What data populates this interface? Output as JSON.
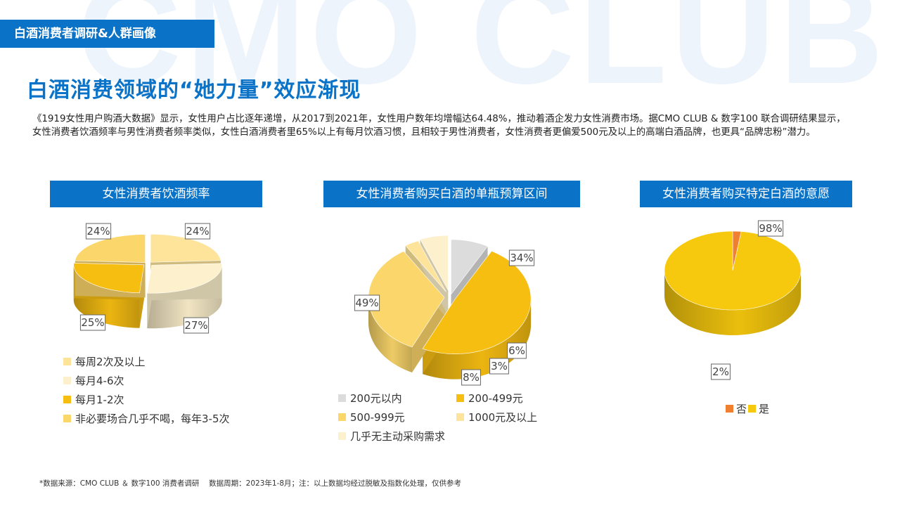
{
  "watermark": "CMO CLUB",
  "section_tag": "白酒消费者调研&人群画像",
  "title": "白酒消费领域的“她力量”效应渐现",
  "intro": "《1919女性用户购酒大数据》显示，女性用户占比逐年递增，从2017到2021年，女性用户数年均增幅达64.48%，推动着酒企发力女性消费市场。据CMO CLUB & 数字100 联合调研结果显示，女性消费者饮酒频率与男性消费者频率类似，女性白酒消费者里65%以上有每月饮酒习惯，且相较于男性消费者，女性消费者更偏爱500元及以上的高端白酒品牌，也更具“品牌忠粉”潜力。",
  "footnote": "*数据来源：CMO CLUB ＆ 数字100 消费者调研　 数据周期：2023年1-8月；注：以上数据均经过脱敏及指数化处理，仅供参考",
  "chart_data": [
    {
      "type": "pie",
      "title": "女性消费者饮酒频率",
      "categories": [
        "每周2次及以上",
        "每月4-6次",
        "每月1-2次",
        "非必要场合几乎不喝，每年3-5次"
      ],
      "values": [
        24,
        27,
        25,
        24
      ],
      "labels": [
        "24%",
        "27%",
        "25%",
        "24%"
      ],
      "colors": [
        "#fde49a",
        "#fdf0cc",
        "#f7be12",
        "#fbd66a"
      ],
      "legend_position": "bottom"
    },
    {
      "type": "pie",
      "title": "女性消费者购买白酒的单瓶预算区间",
      "categories": [
        "200元以内",
        "200-499元",
        "500-999元",
        "1000元及以上",
        "几乎无主动采购需求"
      ],
      "values": [
        8,
        49,
        34,
        3,
        6
      ],
      "labels": [
        "8%",
        "49%",
        "34%",
        "3%",
        "6%"
      ],
      "colors": [
        "#dcdcdc",
        "#f7be12",
        "#fbd66a",
        "#fde49a",
        "#fdf0cc"
      ],
      "legend_position": "bottom"
    },
    {
      "type": "pie",
      "title": "女性消费者购买特定白酒的意愿",
      "categories": [
        "否",
        "是"
      ],
      "values": [
        2,
        98
      ],
      "labels": [
        "2%",
        "98%"
      ],
      "colors": [
        "#f08030",
        "#f7c90e"
      ],
      "legend_position": "bottom"
    }
  ]
}
